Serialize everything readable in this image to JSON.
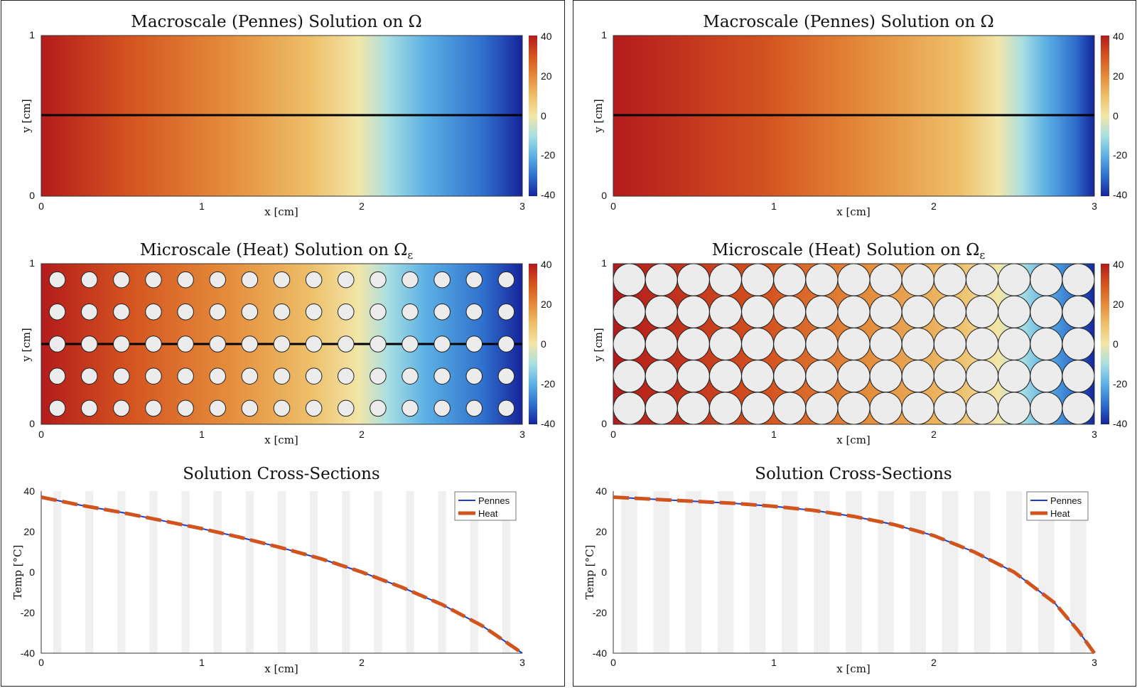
{
  "colorbar": {
    "ticks": [
      "40",
      "20",
      "0",
      "-20",
      "-40"
    ],
    "colors": [
      "#b31b1b",
      "#d4531f",
      "#e48a3a",
      "#eebf6a",
      "#f2e6a8",
      "#a9dfe2",
      "#5bb0e4",
      "#2f6fcd",
      "#15249c"
    ]
  },
  "line_colors": {
    "pennes": "#1f3fc9",
    "heat": "#d2531c",
    "hatch": "#e6e6e6"
  },
  "panels": [
    {
      "macro_title": "Macroscale (Pennes) Solution on Ω",
      "micro_title_main": "Microscale (Heat) Solution on Ω",
      "micro_title_sub": "ε",
      "cross_title": "Solution Cross-Sections",
      "x_axis_label": "x [cm]",
      "y_axis_label": "y [cm]",
      "temp_axis_label": "Temp [°C]",
      "legend": [
        "Pennes",
        "Heat"
      ],
      "x_ticks": [
        "0",
        "1",
        "2",
        "3"
      ],
      "y_ticks": [
        "0",
        "1"
      ],
      "temp_ticks": [
        "40",
        "20",
        "0",
        "-20",
        "-40"
      ],
      "inclusion_radius_cm": 0.025
    },
    {
      "macro_title": "Macroscale (Pennes) Solution on Ω",
      "micro_title_main": "Microscale (Heat) Solution on Ω",
      "micro_title_sub": "ε",
      "cross_title": "Solution Cross-Sections",
      "x_axis_label": "x [cm]",
      "y_axis_label": "y [cm]",
      "temp_axis_label": "Temp [°C]",
      "legend": [
        "Pennes",
        "Heat"
      ],
      "x_ticks": [
        "0",
        "1",
        "2",
        "3"
      ],
      "y_ticks": [
        "0",
        "1"
      ],
      "temp_ticks": [
        "40",
        "20",
        "0",
        "-20",
        "-40"
      ],
      "inclusion_radius_cm": 0.05
    }
  ],
  "chart_data": [
    {
      "type": "line",
      "title": "Solution Cross-Sections (left)",
      "xlabel": "x [cm]",
      "ylabel": "Temp [°C]",
      "xlim": [
        0,
        3
      ],
      "ylim": [
        -40,
        40
      ],
      "series": [
        {
          "name": "Pennes",
          "x": [
            0,
            0.25,
            0.5,
            0.75,
            1.0,
            1.25,
            1.5,
            1.75,
            2.0,
            2.25,
            2.5,
            2.75,
            3.0
          ],
          "values": [
            37,
            33,
            29.5,
            25.5,
            21.5,
            17,
            12,
            6.5,
            0,
            -7.5,
            -16,
            -26.5,
            -40
          ]
        },
        {
          "name": "Heat",
          "x": [
            0,
            0.25,
            0.5,
            0.75,
            1.0,
            1.25,
            1.5,
            1.75,
            2.0,
            2.25,
            2.5,
            2.75,
            3.0
          ],
          "values": [
            37,
            33,
            29.5,
            25.5,
            21.5,
            17,
            12,
            6.5,
            0,
            -7.5,
            -16,
            -26.5,
            -40
          ]
        }
      ]
    },
    {
      "type": "line",
      "title": "Solution Cross-Sections (right)",
      "xlabel": "x [cm]",
      "ylabel": "Temp [°C]",
      "xlim": [
        0,
        3
      ],
      "ylim": [
        -40,
        40
      ],
      "series": [
        {
          "name": "Pennes",
          "x": [
            0,
            0.25,
            0.5,
            0.75,
            1.0,
            1.25,
            1.5,
            1.75,
            2.0,
            2.25,
            2.5,
            2.6,
            2.75,
            2.9,
            3.0
          ],
          "values": [
            37,
            36,
            35,
            34,
            32.5,
            30.5,
            27.5,
            23.5,
            18,
            10,
            0,
            -6,
            -15,
            -29,
            -40
          ]
        },
        {
          "name": "Heat",
          "x": [
            0,
            0.25,
            0.5,
            0.75,
            1.0,
            1.25,
            1.5,
            1.75,
            2.0,
            2.25,
            2.5,
            2.6,
            2.75,
            2.9,
            3.0
          ],
          "values": [
            37,
            36,
            35,
            34,
            32.5,
            30.5,
            27.5,
            23.5,
            18,
            10,
            0,
            -6,
            -15,
            -29,
            -40
          ]
        }
      ]
    }
  ]
}
